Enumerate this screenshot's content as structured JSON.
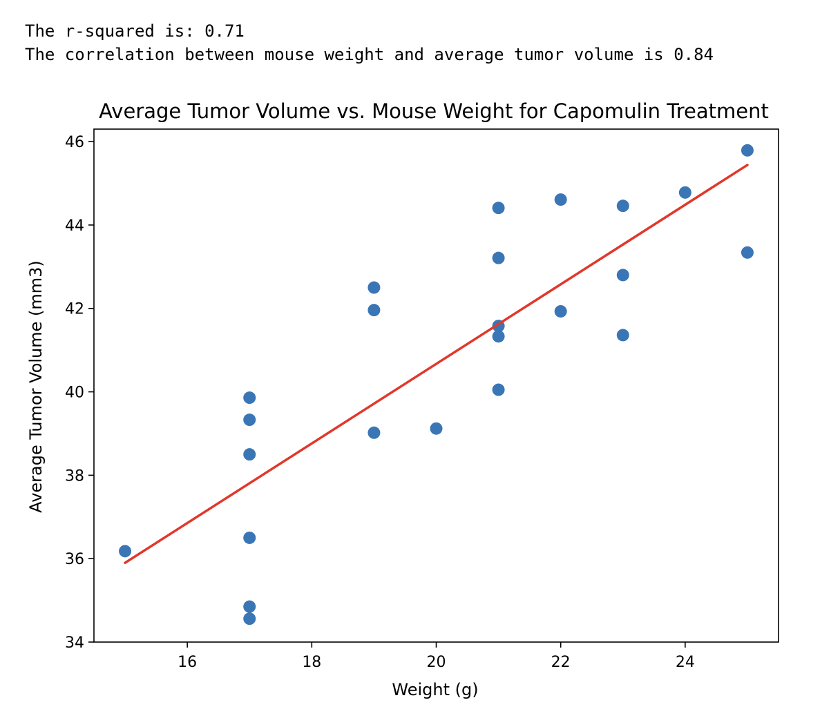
{
  "output": {
    "line1": "The r-squared is: 0.71",
    "line2": "The correlation between mouse weight and average tumor volume is 0.84"
  },
  "chart_data": {
    "type": "scatter",
    "title": "Average Tumor Volume vs. Mouse Weight for Capomulin Treatment",
    "xlabel": "Weight (g)",
    "ylabel": "Average Tumor Volume (mm3)",
    "xlim": [
      14.5,
      25.5
    ],
    "ylim": [
      34,
      46.3
    ],
    "xticks": [
      16,
      18,
      20,
      22,
      24
    ],
    "yticks": [
      34,
      36,
      38,
      40,
      42,
      44,
      46
    ],
    "grid": false,
    "points": [
      {
        "x": 15,
        "y": 36.18
      },
      {
        "x": 17,
        "y": 39.86
      },
      {
        "x": 17,
        "y": 39.33
      },
      {
        "x": 17,
        "y": 38.5
      },
      {
        "x": 17,
        "y": 36.5
      },
      {
        "x": 17,
        "y": 34.85
      },
      {
        "x": 17,
        "y": 34.56
      },
      {
        "x": 19,
        "y": 42.5
      },
      {
        "x": 19,
        "y": 41.96
      },
      {
        "x": 19,
        "y": 39.02
      },
      {
        "x": 20,
        "y": 39.12
      },
      {
        "x": 21,
        "y": 44.41
      },
      {
        "x": 21,
        "y": 43.21
      },
      {
        "x": 21,
        "y": 41.58
      },
      {
        "x": 21,
        "y": 41.33
      },
      {
        "x": 21,
        "y": 40.05
      },
      {
        "x": 22,
        "y": 44.61
      },
      {
        "x": 22,
        "y": 41.93
      },
      {
        "x": 23,
        "y": 44.46
      },
      {
        "x": 23,
        "y": 42.8
      },
      {
        "x": 23,
        "y": 41.36
      },
      {
        "x": 24,
        "y": 44.78
      },
      {
        "x": 25,
        "y": 45.79
      },
      {
        "x": 25,
        "y": 43.34
      }
    ],
    "regression": {
      "x": [
        15,
        25
      ],
      "y": [
        35.9,
        45.44
      ]
    },
    "colors": {
      "points": "#3a76b5",
      "line": "#e0382b",
      "axes": "#000000"
    }
  }
}
